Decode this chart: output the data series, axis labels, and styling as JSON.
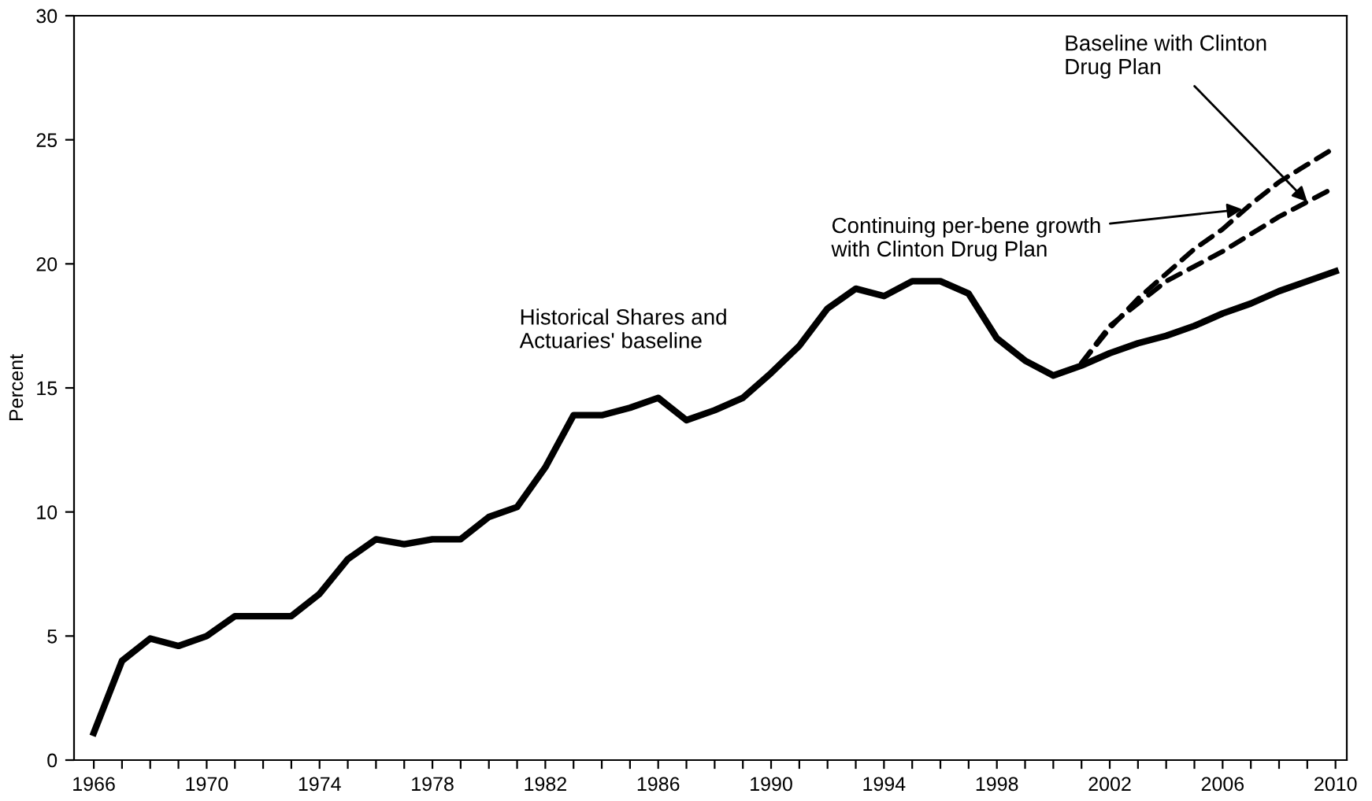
{
  "chart_data": {
    "type": "line",
    "ylabel": "Percent",
    "xlim": [
      1965.3,
      2010.4
    ],
    "ylim": [
      0,
      30
    ],
    "xticks": [
      1966,
      {
        "value": 1967,
        "label": null
      },
      {
        "value": 1968,
        "label": null
      },
      {
        "value": 1969,
        "label": null
      },
      1970,
      {
        "value": 1971,
        "label": null
      },
      {
        "value": 1972,
        "label": null
      },
      {
        "value": 1973,
        "label": null
      },
      1974,
      {
        "value": 1975,
        "label": null
      },
      {
        "value": 1976,
        "label": null
      },
      {
        "value": 1977,
        "label": null
      },
      1978,
      {
        "value": 1979,
        "label": null
      },
      {
        "value": 1980,
        "label": null
      },
      {
        "value": 1981,
        "label": null
      },
      1982,
      {
        "value": 1983,
        "label": null
      },
      {
        "value": 1984,
        "label": null
      },
      {
        "value": 1985,
        "label": null
      },
      1986,
      {
        "value": 1987,
        "label": null
      },
      {
        "value": 1988,
        "label": null
      },
      {
        "value": 1989,
        "label": null
      },
      1990,
      {
        "value": 1991,
        "label": null
      },
      {
        "value": 1992,
        "label": null
      },
      {
        "value": 1993,
        "label": null
      },
      1994,
      {
        "value": 1995,
        "label": null
      },
      {
        "value": 1996,
        "label": null
      },
      {
        "value": 1997,
        "label": null
      },
      1998,
      {
        "value": 1999,
        "label": null
      },
      {
        "value": 2000,
        "label": null
      },
      {
        "value": 2001,
        "label": null
      },
      2002,
      {
        "value": 2003,
        "label": null
      },
      {
        "value": 2004,
        "label": null
      },
      {
        "value": 2005,
        "label": null
      },
      2006,
      {
        "value": 2007,
        "label": null
      },
      {
        "value": 2008,
        "label": null
      },
      {
        "value": 2009,
        "label": null
      },
      2010
    ],
    "yticks": [
      0,
      5,
      10,
      15,
      20,
      25,
      30
    ],
    "grid": false,
    "marker": "none",
    "series": [
      {
        "color": "#000000",
        "line_style": "solid",
        "x": [
          1966,
          1967,
          1968,
          1969,
          1970,
          1971,
          1972,
          1973,
          1974,
          1975,
          1976,
          1977,
          1978,
          1979,
          1980,
          1981,
          1982,
          1983,
          1984,
          1985,
          1986,
          1987,
          1988,
          1989,
          1990,
          1991,
          1992,
          1993,
          1994,
          1995,
          1996,
          1997,
          1998,
          1999,
          2000,
          2001,
          2002,
          2003,
          2004,
          2005,
          2006,
          2007,
          2008,
          2009,
          2010
        ],
        "values": [
          1.1,
          4.0,
          4.9,
          4.6,
          5.0,
          5.8,
          5.8,
          5.8,
          6.7,
          8.1,
          8.9,
          8.7,
          8.9,
          8.9,
          9.8,
          10.2,
          11.8,
          13.9,
          13.9,
          14.2,
          14.6,
          13.7,
          14.1,
          14.6,
          15.6,
          16.7,
          18.2,
          19.0,
          18.7,
          19.3,
          19.3,
          18.8,
          17.0,
          16.1,
          15.5,
          15.9,
          16.4,
          16.8,
          17.1,
          17.5,
          18.0,
          18.4,
          18.9,
          19.3,
          19.7
        ]
      },
      {
        "color": "#000000",
        "line_style": "dashed",
        "x": [
          2001,
          2002,
          2003,
          2004,
          2005,
          2006,
          2007,
          2008,
          2009,
          2010
        ],
        "values": [
          16.0,
          17.4,
          18.6,
          19.6,
          20.6,
          21.4,
          22.4,
          23.3,
          24.0,
          24.7
        ]
      },
      {
        "color": "#000000",
        "line_style": "dashed",
        "x": [
          2001,
          2002,
          2003,
          2004,
          2005,
          2006,
          2007,
          2008,
          2009,
          2010
        ],
        "values": [
          16.0,
          17.5,
          18.4,
          19.3,
          19.9,
          20.5,
          21.2,
          21.9,
          22.5,
          23.1
        ]
      }
    ],
    "annotations": [
      "Historical Shares and\nActuaries' baseline",
      {
        "text": "Continuing per-bene growth\nwith Clinton Drug Plan",
        "x": 2006.7,
        "y": 22.2
      },
      {
        "text": "Baseline with Clinton\nDrug Plan",
        "x": 2009.0,
        "y": 22.5
      }
    ]
  }
}
